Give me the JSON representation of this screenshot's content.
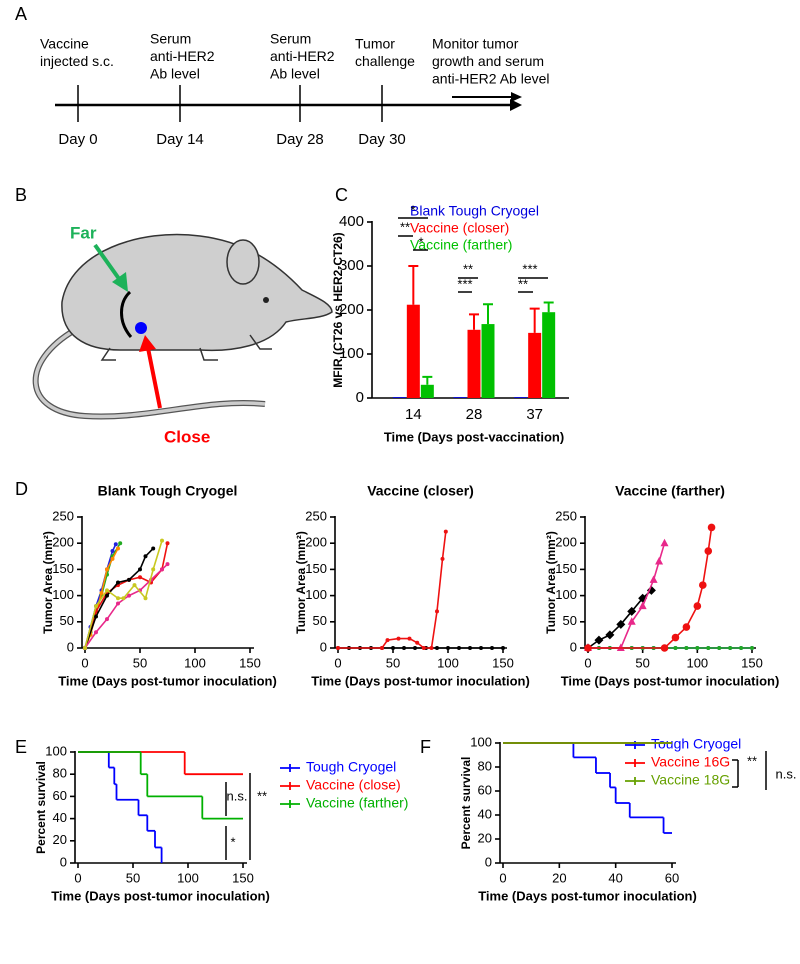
{
  "panel_labels": [
    "A",
    "B",
    "C",
    "D",
    "E",
    "F"
  ],
  "timeline": {
    "events": [
      [
        "Vaccine",
        "injected s.c."
      ],
      [
        "Serum",
        "anti-HER2",
        "Ab level"
      ],
      [
        "Serum",
        "anti-HER2",
        "Ab level"
      ],
      [
        "Tumor",
        "challenge"
      ],
      [
        "Monitor tumor",
        "growth and serum",
        "anti-HER2 Ab level"
      ]
    ],
    "days": [
      "Day 0",
      "Day 14",
      "Day 28",
      "Day 30"
    ]
  },
  "illustration": {
    "labels": [
      "Far",
      "Close"
    ]
  },
  "chart_data": [
    {
      "type": "bar",
      "xlabel": "Time (Days post-vaccination)",
      "ylabel": "MFIR (CT26 vs HER2-CT26)",
      "categories": [
        "14",
        "28",
        "37"
      ],
      "ylim": [
        0,
        400
      ],
      "yticks": [
        0,
        100,
        200,
        300,
        400
      ],
      "series": [
        {
          "name": "Blank Tough Cryogel",
          "color": "#0000dd",
          "values": [
            2,
            2,
            2
          ]
        },
        {
          "name": "Vaccine (closer)",
          "color": "#ff0000",
          "values": [
            212,
            155,
            148
          ],
          "errors": [
            88,
            35,
            55
          ]
        },
        {
          "name": "Vaccine (farther)",
          "color": "#00c000",
          "values": [
            30,
            168,
            195
          ],
          "errors": [
            18,
            45,
            22
          ]
        }
      ],
      "annotations": [
        "*",
        "**",
        "*",
        "**",
        "***",
        "***",
        "**"
      ]
    },
    {
      "type": "line",
      "title": "Blank Tough Cryogel",
      "xlabel": "Time (Days post-tumor inoculation)",
      "ylabel": "Tumor Area (mm²)",
      "xlim": [
        0,
        150
      ],
      "xticks": [
        0,
        50,
        100,
        150
      ],
      "ylim": [
        0,
        250
      ],
      "yticks": [
        0,
        50,
        100,
        150,
        200,
        250
      ],
      "series": [
        {
          "color": "#2222dd",
          "marker": "dot",
          "x": [
            0,
            5,
            10,
            15,
            20,
            25,
            28
          ],
          "values": [
            0,
            40,
            80,
            110,
            150,
            185,
            198
          ]
        },
        {
          "color": "#22aa22",
          "marker": "dot",
          "x": [
            0,
            5,
            10,
            15,
            20,
            25,
            32
          ],
          "values": [
            0,
            30,
            70,
            100,
            140,
            175,
            200
          ]
        },
        {
          "color": "#ff8800",
          "marker": "dot",
          "x": [
            0,
            5,
            10,
            15,
            20,
            25,
            30
          ],
          "values": [
            0,
            25,
            65,
            105,
            150,
            170,
            190
          ]
        },
        {
          "color": "#ee1111",
          "marker": "dot",
          "x": [
            0,
            10,
            20,
            30,
            40,
            50,
            60,
            70,
            75
          ],
          "values": [
            0,
            70,
            105,
            120,
            130,
            135,
            125,
            150,
            200
          ]
        },
        {
          "color": "#000000",
          "marker": "dot",
          "x": [
            0,
            10,
            20,
            30,
            40,
            50,
            55,
            62
          ],
          "values": [
            0,
            60,
            100,
            125,
            130,
            150,
            175,
            190
          ]
        },
        {
          "color": "#e8288a",
          "marker": "dot",
          "x": [
            0,
            10,
            20,
            30,
            40,
            50,
            60,
            70,
            75
          ],
          "values": [
            0,
            30,
            55,
            85,
            100,
            110,
            130,
            150,
            160
          ]
        },
        {
          "color": "#c8c820",
          "marker": "dot",
          "x": [
            0,
            10,
            20,
            30,
            35,
            45,
            55,
            62,
            70
          ],
          "values": [
            0,
            80,
            110,
            95,
            95,
            120,
            95,
            150,
            205
          ]
        }
      ]
    },
    {
      "type": "line",
      "title": "Vaccine (closer)",
      "xlabel": "Time (Days post-tumor inoculation)",
      "ylabel": "Tumor Area (mm²)",
      "xlim": [
        0,
        150
      ],
      "xticks": [
        0,
        50,
        100,
        150
      ],
      "ylim": [
        0,
        250
      ],
      "yticks": [
        0,
        50,
        100,
        150,
        200,
        250
      ],
      "series": [
        {
          "color": "#000000",
          "marker": "dot",
          "x": [
            0,
            10,
            20,
            30,
            40,
            50,
            60,
            70,
            80,
            90,
            100,
            110,
            120,
            130,
            140,
            150
          ],
          "values": [
            0,
            0,
            0,
            0,
            0,
            0,
            0,
            0,
            0,
            0,
            0,
            0,
            0,
            0,
            0,
            0
          ]
        },
        {
          "color": "#ee1111",
          "marker": "dot",
          "x": [
            0,
            40,
            45,
            55,
            65,
            72,
            78,
            85,
            90,
            95,
            98
          ],
          "values": [
            0,
            0,
            15,
            18,
            18,
            10,
            0,
            0,
            70,
            170,
            222
          ]
        }
      ]
    },
    {
      "type": "line",
      "title": "Vaccine (farther)",
      "xlabel": "Time (Days post-tumor inoculation)",
      "ylabel": "Tumor Area (mm²)",
      "xlim": [
        0,
        150
      ],
      "xticks": [
        0,
        50,
        100,
        150
      ],
      "ylim": [
        0,
        250
      ],
      "yticks": [
        0,
        50,
        100,
        150,
        200,
        250
      ],
      "series": [
        {
          "color": "#2222dd",
          "marker": "dot",
          "x": [
            0,
            10,
            20,
            30,
            40,
            50,
            60,
            70,
            80,
            90,
            100,
            110,
            120,
            130,
            140,
            150
          ],
          "values": [
            0,
            0,
            0,
            0,
            0,
            0,
            0,
            0,
            0,
            0,
            0,
            0,
            0,
            0,
            0,
            0
          ]
        },
        {
          "color": "#22aa22",
          "marker": "dot",
          "x": [
            0,
            10,
            20,
            30,
            40,
            50,
            60,
            70,
            80,
            90,
            100,
            110,
            120,
            130,
            140,
            150
          ],
          "values": [
            0,
            0,
            0,
            0,
            0,
            0,
            0,
            0,
            0,
            0,
            0,
            0,
            0,
            0,
            0,
            0
          ]
        },
        {
          "color": "#000000",
          "marker": "diamond",
          "x": [
            0,
            10,
            20,
            30,
            40,
            50,
            58
          ],
          "values": [
            0,
            15,
            25,
            45,
            70,
            95,
            110
          ]
        },
        {
          "color": "#e8288a",
          "marker": "triangle",
          "x": [
            0,
            30,
            40,
            50,
            60,
            65,
            70
          ],
          "values": [
            0,
            0,
            50,
            80,
            130,
            165,
            200
          ]
        },
        {
          "color": "#ee1111",
          "marker": "circle",
          "x": [
            0,
            70,
            80,
            90,
            100,
            105,
            110,
            113
          ],
          "values": [
            0,
            0,
            20,
            40,
            80,
            120,
            185,
            230
          ]
        }
      ]
    },
    {
      "type": "step",
      "xlabel": "Time (Days post-tumor inoculation)",
      "ylabel": "Percent survival",
      "xlim": [
        0,
        150
      ],
      "xticks": [
        0,
        50,
        100,
        150
      ],
      "ylim": [
        0,
        100
      ],
      "yticks": [
        0,
        20,
        40,
        60,
        80,
        100
      ],
      "series": [
        {
          "name": "Tough Cryogel",
          "color": "#0000ff",
          "x": [
            0,
            28,
            33,
            35,
            55,
            63,
            70,
            76
          ],
          "values": [
            100,
            86,
            71,
            57,
            43,
            29,
            14,
            0
          ]
        },
        {
          "name": "Vaccine (close)",
          "color": "#ff0000",
          "x": [
            0,
            97,
            150
          ],
          "values": [
            100,
            80,
            80
          ]
        },
        {
          "name": "Vaccine (farther)",
          "color": "#00b000",
          "x": [
            0,
            57,
            63,
            113,
            150
          ],
          "values": [
            100,
            80,
            60,
            40,
            40
          ]
        }
      ],
      "annotations": [
        "n.s.",
        "*",
        "**"
      ]
    },
    {
      "type": "step",
      "xlabel": "Time (Days post-tumor inoculation)",
      "ylabel": "Percent survival",
      "xlim": [
        0,
        60
      ],
      "xticks": [
        0,
        20,
        40,
        60
      ],
      "ylim": [
        0,
        100
      ],
      "yticks": [
        0,
        20,
        40,
        60,
        80,
        100
      ],
      "series": [
        {
          "name": "Tough Cryogel",
          "color": "#0000ff",
          "x": [
            0,
            25,
            33,
            38,
            40,
            45,
            57,
            60
          ],
          "values": [
            100,
            88,
            75,
            63,
            50,
            38,
            25,
            25
          ]
        },
        {
          "name": "Vaccine 16G",
          "color": "#ff0000",
          "x": [
            0,
            60
          ],
          "values": [
            100,
            100
          ]
        },
        {
          "name": "Vaccine 18G",
          "color": "#66a000",
          "x": [
            0,
            60
          ],
          "values": [
            100,
            100
          ]
        }
      ],
      "annotations": [
        "**",
        "n.s."
      ]
    }
  ]
}
